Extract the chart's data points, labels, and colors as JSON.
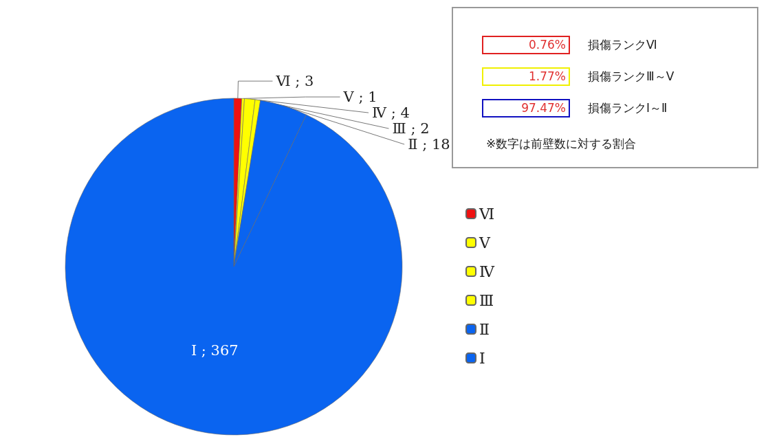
{
  "chart_data": {
    "type": "pie",
    "categories": [
      "Ⅵ",
      "Ⅴ",
      "Ⅳ",
      "Ⅲ",
      "Ⅱ",
      "Ⅰ"
    ],
    "values": [
      3,
      1,
      4,
      2,
      18,
      367
    ],
    "colors": [
      "#ee1111",
      "#ffff00",
      "#ffff00",
      "#ffff00",
      "#0a64f0",
      "#0a64f0"
    ],
    "value_labels": [
      "Ⅵ ; 3",
      "Ⅴ ; 1",
      "Ⅳ ; 4",
      "Ⅲ ; 2",
      "Ⅱ ; 18",
      "Ⅰ ; 367"
    ],
    "annotations": [
      "0.76%",
      "損傷ランクⅥ",
      "1.77%",
      "損傷ランクⅢ～Ⅴ",
      "97.47%",
      "損傷ランクⅠ～Ⅱ",
      "※数字は前壁数に対する割合"
    ],
    "legend": "right"
  }
}
